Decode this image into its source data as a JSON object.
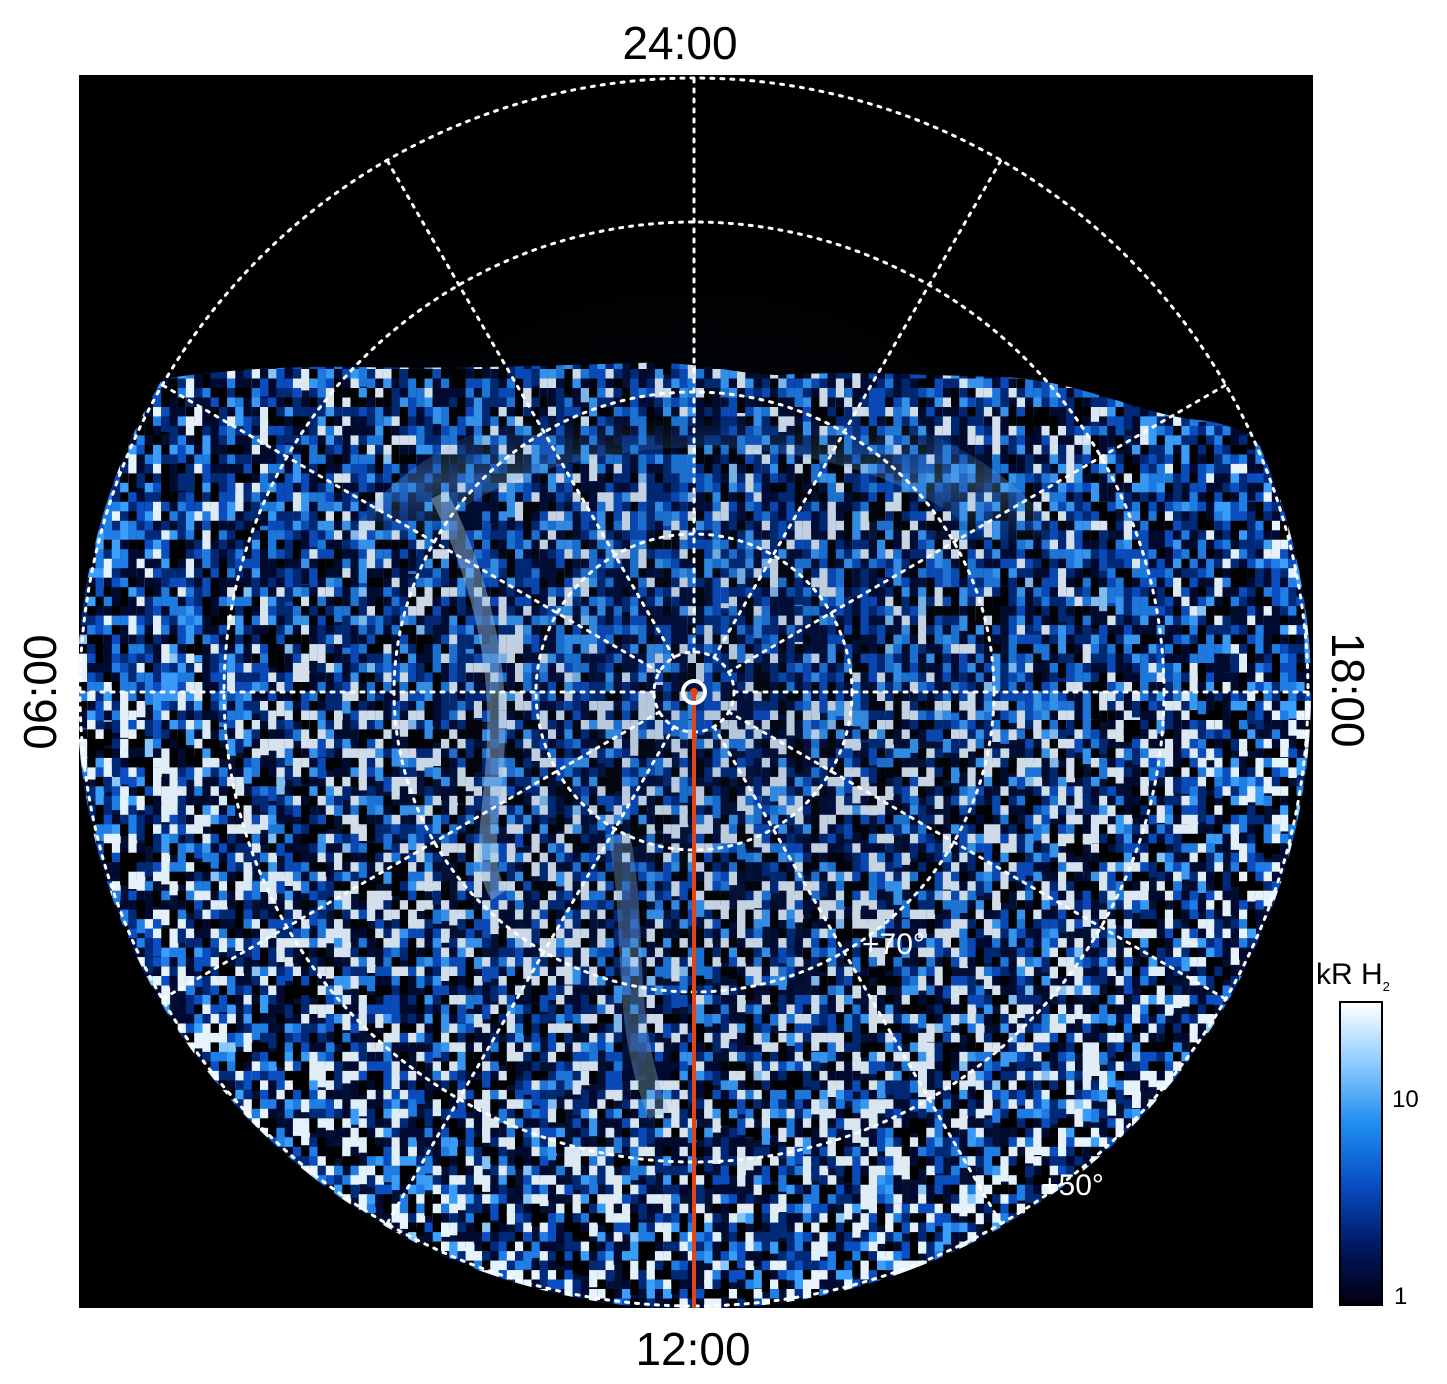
{
  "figure": {
    "local_time_labels": {
      "top": "24:00",
      "bottom": "12:00",
      "left": "06:00",
      "right": "18:00"
    },
    "latitude_labels": [
      "+70°",
      "+50°"
    ],
    "colorbar": {
      "title": "kR H",
      "title_subscript": "2",
      "ticks": [
        "10",
        "1"
      ],
      "scale": "log",
      "colors": [
        "#000010",
        "#001a66",
        "#0a4fc4",
        "#1f8ef0",
        "#8dcbff",
        "#ffffff"
      ]
    },
    "colors": {
      "background": "#000000",
      "grid": "#ffffff",
      "meridian_line": "#e0451a"
    }
  }
}
